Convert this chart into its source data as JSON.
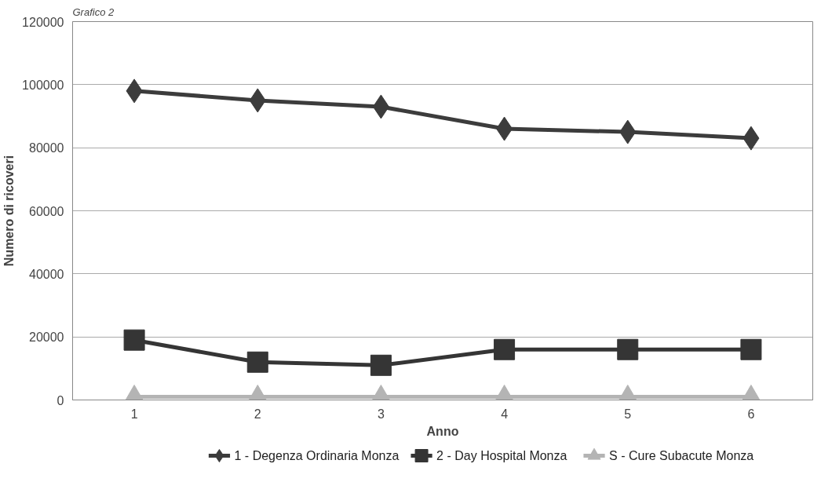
{
  "chart_data": {
    "type": "line",
    "title": "Grafico 2",
    "xlabel": "Anno",
    "ylabel": "Numero di ricoveri",
    "categories": [
      "1",
      "2",
      "3",
      "4",
      "5",
      "6"
    ],
    "ylim": [
      0,
      120000
    ],
    "yticks": [
      0,
      20000,
      40000,
      60000,
      80000,
      100000,
      120000
    ],
    "grid": "y",
    "legend": "bottom",
    "series": [
      {
        "name": "1 - Degenza Ordinaria Monza",
        "color": "#3c3c3c",
        "marker": "diamond",
        "values": [
          98000,
          95000,
          93000,
          86000,
          85000,
          83000
        ]
      },
      {
        "name": "2 - Day Hospital Monza",
        "color": "#353535",
        "marker": "square",
        "values": [
          19000,
          12000,
          11000,
          16000,
          16000,
          16000
        ]
      },
      {
        "name": "S - Cure Subacute Monza",
        "color": "#b4b4b4",
        "marker": "triangle",
        "values": [
          1000,
          1000,
          1000,
          1000,
          1000,
          1000
        ]
      }
    ]
  }
}
